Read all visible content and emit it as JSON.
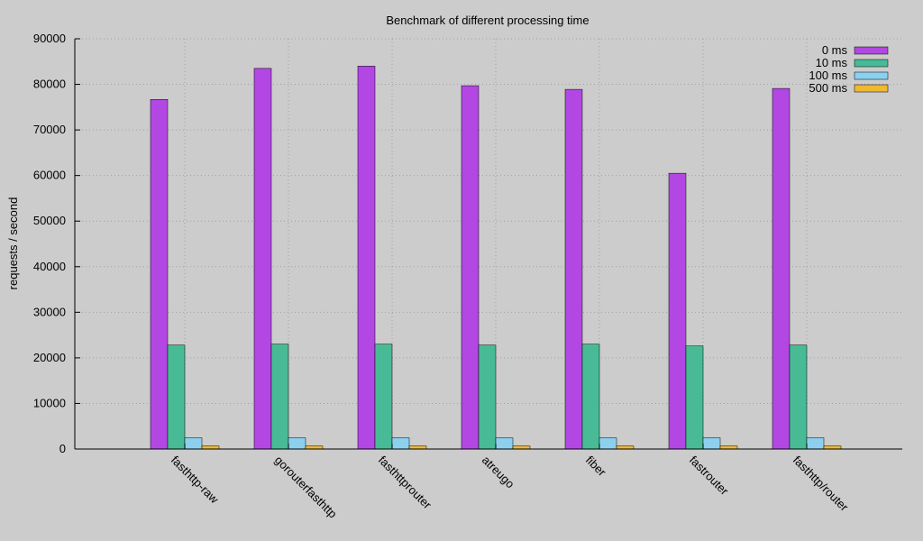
{
  "chart_data": {
    "type": "bar",
    "title": "Benchmark of different processing time",
    "xlabel": "",
    "ylabel": "requests / second",
    "ylim": [
      0,
      90000
    ],
    "yticks": [
      0,
      10000,
      20000,
      30000,
      40000,
      50000,
      60000,
      70000,
      80000,
      90000
    ],
    "grid": true,
    "legend_position": "top-right",
    "categories": [
      "fasthttp-raw",
      "gorouterfasthttp",
      "fasthttprouter",
      "atreugo",
      "fiber",
      "fastrouter",
      "fasthttp/router"
    ],
    "series": [
      {
        "name": "0 ms",
        "color": "#b347e4",
        "values": [
          76700,
          83500,
          84000,
          79700,
          78900,
          60500,
          79100
        ]
      },
      {
        "name": "10 ms",
        "color": "#48bb96",
        "values": [
          22800,
          23000,
          23000,
          22800,
          23000,
          22600,
          22800
        ]
      },
      {
        "name": "100 ms",
        "color": "#8dd0ee",
        "values": [
          2450,
          2450,
          2450,
          2450,
          2450,
          2450,
          2450
        ]
      },
      {
        "name": "500 ms",
        "color": "#f0b92e",
        "values": [
          650,
          650,
          650,
          650,
          650,
          650,
          650
        ]
      }
    ]
  }
}
